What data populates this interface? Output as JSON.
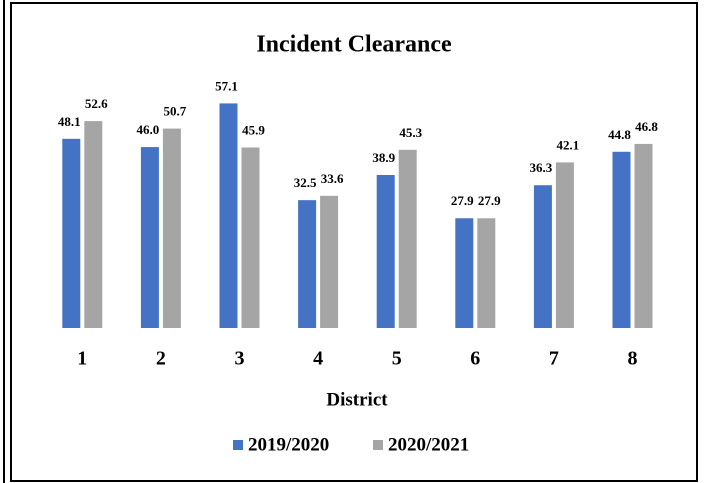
{
  "chart_data": {
    "type": "bar",
    "title": "Incident Clearance",
    "x_label": "District",
    "categories": [
      "1",
      "2",
      "3",
      "4",
      "5",
      "6",
      "7",
      "8"
    ],
    "series": [
      {
        "name": "2019/2020",
        "color": "#4472c4",
        "values": [
          48.1,
          46.0,
          57.1,
          32.5,
          38.9,
          27.9,
          36.3,
          44.8
        ],
        "value_labels": [
          "48.1",
          "46.0",
          "57.1",
          "32.5",
          "38.9",
          "27.9",
          "36.3",
          "44.8"
        ]
      },
      {
        "name": "2020/2021",
        "color": "#a5a5a5",
        "values": [
          52.6,
          50.7,
          45.9,
          33.6,
          45.3,
          27.9,
          42.1,
          46.8
        ],
        "value_labels": [
          "52.6",
          "50.7",
          "45.9",
          "33.6",
          "45.3",
          "27.9",
          "42.1",
          "46.8"
        ]
      }
    ],
    "ylim": [
      0,
      60
    ],
    "legend": "bottom"
  }
}
